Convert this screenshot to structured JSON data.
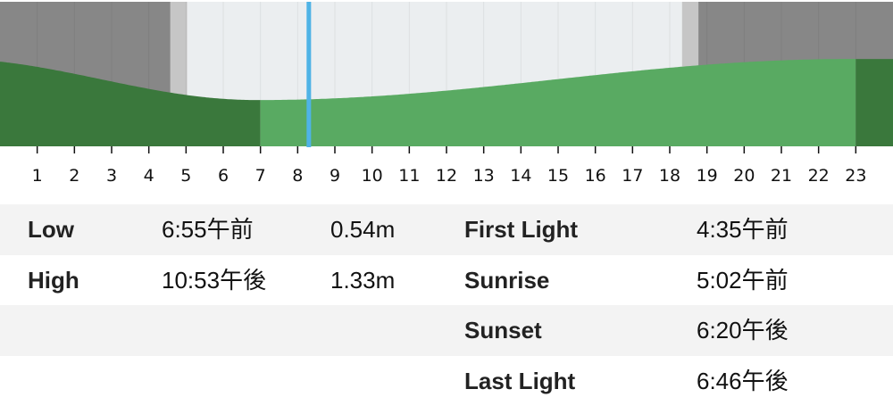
{
  "chart_data": {
    "type": "area",
    "x_unit": "hour",
    "xlim": [
      0,
      24
    ],
    "ylim": [
      -0.35,
      2.43
    ],
    "tick_labels": [
      "1",
      "2",
      "3",
      "4",
      "5",
      "6",
      "7",
      "8",
      "9",
      "10",
      "11",
      "12",
      "13",
      "14",
      "15",
      "16",
      "17",
      "18",
      "19",
      "20",
      "21",
      "22",
      "23"
    ],
    "tide_extremes": [
      {
        "type": "Low",
        "hour": 6.92,
        "height_m": 0.54
      },
      {
        "type": "High",
        "hour": 22.88,
        "height_m": 1.33
      }
    ],
    "previous_high": {
      "hour": -1.5,
      "height_m": 1.34
    },
    "current_time_hour": 8.3,
    "highlight_range_hours": [
      7,
      23
    ],
    "sun": {
      "first_light": 4.58,
      "sunrise": 5.03,
      "sunset": 18.33,
      "last_light": 18.77
    },
    "colors": {
      "night": "#878787",
      "twilight": "#c6c6c6",
      "day": "#ebeef0",
      "tide_dark": "#3a783c",
      "tide_light": "#59aa62",
      "now_line": "#4fb3e6",
      "grid": "#d5d8da"
    }
  },
  "tides": [
    {
      "label": "Low",
      "time": "6:55午前",
      "height": "0.54m"
    },
    {
      "label": "High",
      "time": "10:53午後",
      "height": "1.33m"
    }
  ],
  "sun": [
    {
      "label": "First Light",
      "time": "4:35午前"
    },
    {
      "label": "Sunrise",
      "time": "5:02午前"
    },
    {
      "label": "Sunset",
      "time": "6:20午後"
    },
    {
      "label": "Last Light",
      "time": "6:46午後"
    }
  ]
}
